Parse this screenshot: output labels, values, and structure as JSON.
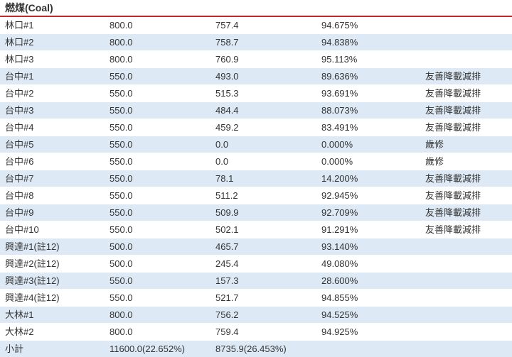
{
  "section_title": "燃煤(Coal)",
  "rows": [
    [
      "林口#1",
      "800.0",
      "757.4",
      "94.675%",
      ""
    ],
    [
      "林口#2",
      "800.0",
      "758.7",
      "94.838%",
      ""
    ],
    [
      "林口#3",
      "800.0",
      "760.9",
      "95.113%",
      ""
    ],
    [
      "台中#1",
      "550.0",
      "493.0",
      "89.636%",
      "友善降載減排"
    ],
    [
      "台中#2",
      "550.0",
      "515.3",
      "93.691%",
      "友善降載減排"
    ],
    [
      "台中#3",
      "550.0",
      "484.4",
      "88.073%",
      "友善降載減排"
    ],
    [
      "台中#4",
      "550.0",
      "459.2",
      "83.491%",
      "友善降載減排"
    ],
    [
      "台中#5",
      "550.0",
      "0.0",
      "0.000%",
      "歲修"
    ],
    [
      "台中#6",
      "550.0",
      "0.0",
      "0.000%",
      "歲修"
    ],
    [
      "台中#7",
      "550.0",
      "78.1",
      "14.200%",
      "友善降載減排"
    ],
    [
      "台中#8",
      "550.0",
      "511.2",
      "92.945%",
      "友善降載減排"
    ],
    [
      "台中#9",
      "550.0",
      "509.9",
      "92.709%",
      "友善降載減排"
    ],
    [
      "台中#10",
      "550.0",
      "502.1",
      "91.291%",
      "友善降載減排"
    ],
    [
      "興達#1(註12)",
      "500.0",
      "465.7",
      "93.140%",
      ""
    ],
    [
      "興達#2(註12)",
      "500.0",
      "245.4",
      "49.080%",
      ""
    ],
    [
      "興達#3(註12)",
      "550.0",
      "157.3",
      "28.600%",
      ""
    ],
    [
      "興達#4(註12)",
      "550.0",
      "521.7",
      "94.855%",
      ""
    ],
    [
      "大林#1",
      "800.0",
      "756.2",
      "94.525%",
      ""
    ],
    [
      "大林#2",
      "800.0",
      "759.4",
      "94.925%",
      ""
    ]
  ],
  "subtotal": [
    "小計",
    "11600.0(22.652%)",
    "8735.9(26.453%)",
    "",
    ""
  ],
  "colors": {
    "header_rule": "#c4262e",
    "row_alt": "#dde9f5",
    "row_base": "#ffffff",
    "text": "#333333"
  }
}
